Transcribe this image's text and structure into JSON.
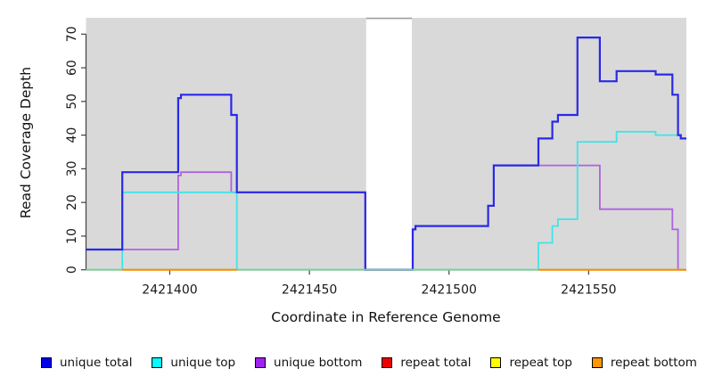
{
  "chart_data": {
    "type": "line",
    "subtype": "step-coverage",
    "title": "",
    "xlabel": "Coordinate in Reference Genome",
    "ylabel": "Read Coverage Depth",
    "x_range": [
      2421370,
      2421585
    ],
    "y_range": [
      0,
      73
    ],
    "x_ticks": [
      2421400,
      2421450,
      2421500,
      2421550
    ],
    "y_ticks": [
      0,
      10,
      20,
      30,
      40,
      50,
      60,
      70
    ],
    "grid": false,
    "panel_bg": "#d9d9d9",
    "gap_region": {
      "from": 2421470,
      "to": 2421487,
      "fill": "#ffffff",
      "top_line_color": "#9e9e9e"
    },
    "axis_color": "#404040",
    "legend_position": "bottom",
    "legend": [
      {
        "label": "unique total",
        "color": "#0000ee"
      },
      {
        "label": "unique top",
        "color": "#00ffff"
      },
      {
        "label": "unique bottom",
        "color": "#a020f0"
      },
      {
        "label": "repeat total",
        "color": "#ee0000"
      },
      {
        "label": "repeat top",
        "color": "#ffff00"
      },
      {
        "label": "repeat bottom",
        "color": "#ff9800"
      }
    ],
    "series": [
      {
        "name": "unique bottom",
        "color": "#ad63de",
        "width": 1.8,
        "segments": [
          [
            [
              2421370,
              6
            ],
            [
              2421403,
              28
            ],
            [
              2421404,
              29
            ],
            [
              2421422,
              23
            ],
            [
              2421470,
              0
            ],
            [
              2421487,
              12
            ],
            [
              2421488,
              13
            ],
            [
              2421514,
              19
            ],
            [
              2421516,
              31
            ],
            [
              2421554,
              18
            ],
            [
              2421580,
              12
            ],
            [
              2421582,
              0
            ],
            [
              2421585,
              0
            ]
          ]
        ]
      },
      {
        "name": "unique top",
        "color": "#40e4e8",
        "width": 1.8,
        "segments": [
          [
            [
              2421370,
              0
            ],
            [
              2421383,
              23
            ],
            [
              2421424,
              0
            ],
            [
              2421532,
              8
            ],
            [
              2421537,
              13
            ],
            [
              2421539,
              15
            ],
            [
              2421546,
              38
            ],
            [
              2421560,
              41
            ],
            [
              2421574,
              40
            ],
            [
              2421583,
              39
            ],
            [
              2421585,
              39
            ]
          ]
        ]
      },
      {
        "name": "unique total",
        "color": "#2929e8",
        "width": 2.2,
        "segments": [
          [
            [
              2421370,
              6
            ],
            [
              2421383,
              29
            ],
            [
              2421403,
              51
            ],
            [
              2421404,
              52
            ],
            [
              2421422,
              46
            ],
            [
              2421424,
              23
            ],
            [
              2421470,
              0
            ],
            [
              2421487,
              12
            ],
            [
              2421488,
              13
            ],
            [
              2421514,
              19
            ],
            [
              2421516,
              31
            ],
            [
              2421532,
              39
            ],
            [
              2421537,
              44
            ],
            [
              2421539,
              46
            ],
            [
              2421546,
              69
            ],
            [
              2421554,
              56
            ],
            [
              2421560,
              59
            ],
            [
              2421574,
              58
            ],
            [
              2421580,
              52
            ],
            [
              2421582,
              40
            ],
            [
              2421583,
              39
            ],
            [
              2421585,
              39
            ]
          ]
        ]
      },
      {
        "name": "zero baseline",
        "color": "#8cc98c",
        "width": 1.8,
        "segments": [
          [
            [
              2421370,
              0
            ],
            [
              2421585,
              0
            ]
          ]
        ]
      },
      {
        "name": "repeat bottom",
        "color": "#ff8c00",
        "width": 2.0,
        "segments": [
          [
            [
              2421383,
              0
            ],
            [
              2421424,
              0
            ]
          ],
          [
            [
              2421532,
              0
            ],
            [
              2421585,
              0
            ]
          ]
        ]
      },
      {
        "name": "repeat total",
        "color": "#ee0000",
        "width": 1.8,
        "segments": []
      },
      {
        "name": "repeat top",
        "color": "#ffff00",
        "width": 1.8,
        "segments": []
      }
    ]
  }
}
